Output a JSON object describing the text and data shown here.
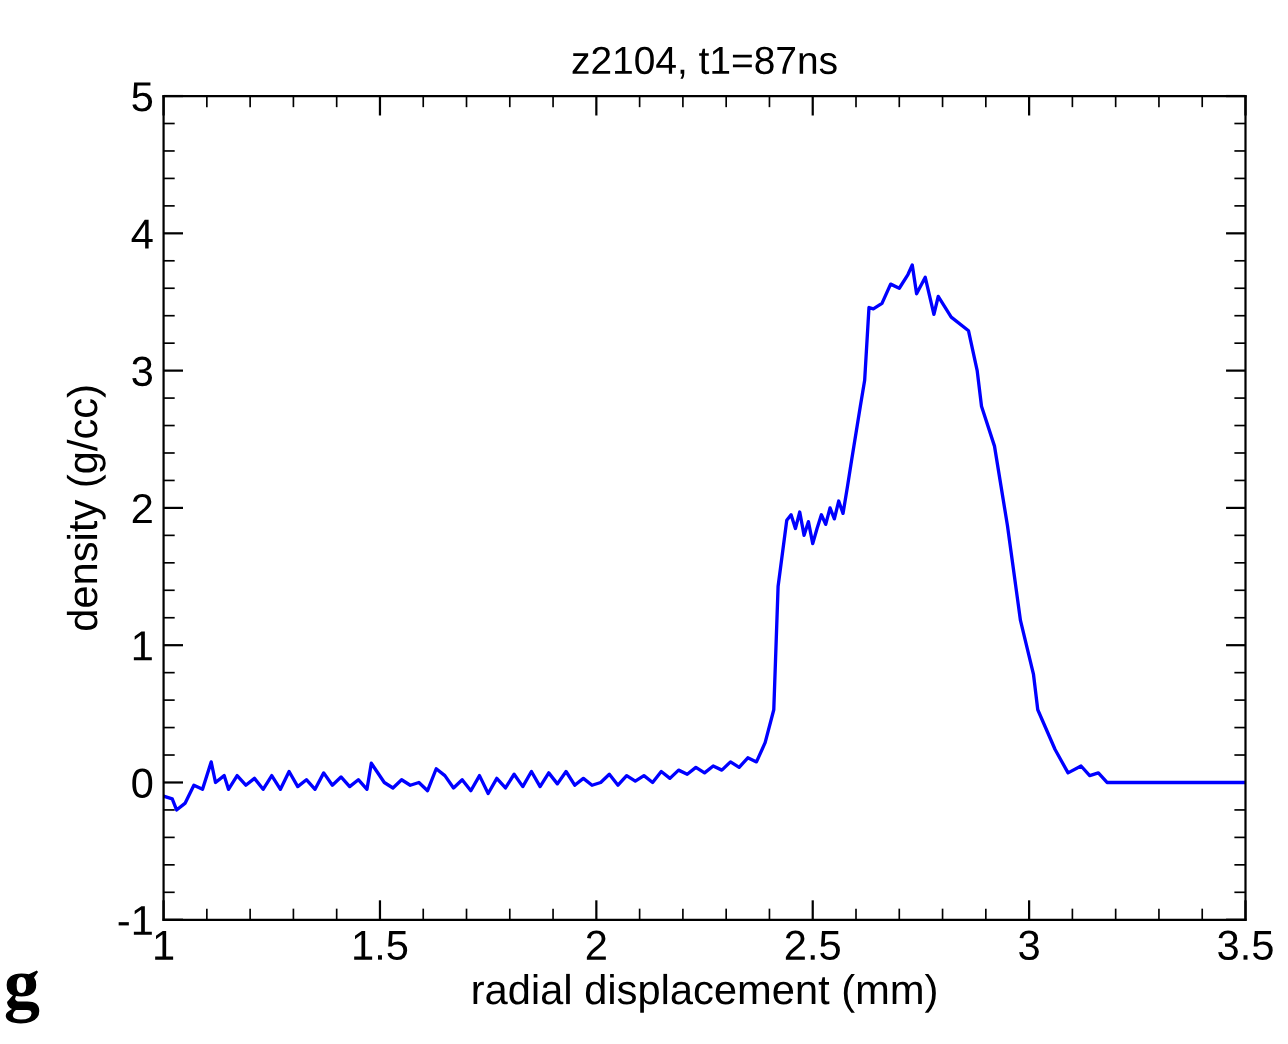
{
  "chart_data": {
    "type": "line",
    "title": "z2104, t1=87ns",
    "xlabel": "radial displacement (mm)",
    "ylabel": "density (g/cc)",
    "annotations": [
      "g"
    ],
    "xlim": [
      1,
      3.5
    ],
    "xticks": [
      1,
      1.5,
      2,
      2.5,
      3,
      3.5
    ],
    "ylim": [
      -1,
      5
    ],
    "yticks": [
      -1,
      0,
      1,
      2,
      3,
      4,
      5
    ],
    "grid": false,
    "marker": "none",
    "line_style": "solid",
    "series": [
      {
        "color": "#0000ff",
        "x": [
          1.0,
          1.02,
          1.03,
          1.05,
          1.07,
          1.09,
          1.11,
          1.12,
          1.14,
          1.15,
          1.17,
          1.19,
          1.21,
          1.23,
          1.25,
          1.27,
          1.29,
          1.31,
          1.33,
          1.35,
          1.37,
          1.39,
          1.41,
          1.43,
          1.45,
          1.47,
          1.48,
          1.51,
          1.53,
          1.55,
          1.57,
          1.59,
          1.61,
          1.63,
          1.65,
          1.67,
          1.69,
          1.71,
          1.73,
          1.75,
          1.77,
          1.79,
          1.81,
          1.83,
          1.85,
          1.87,
          1.89,
          1.91,
          1.93,
          1.95,
          1.97,
          1.99,
          2.01,
          2.03,
          2.05,
          2.07,
          2.09,
          2.11,
          2.13,
          2.15,
          2.17,
          2.19,
          2.21,
          2.23,
          2.25,
          2.27,
          2.29,
          2.31,
          2.33,
          2.35,
          2.37,
          2.39,
          2.41,
          2.42,
          2.44,
          2.45,
          2.46,
          2.47,
          2.48,
          2.49,
          2.5,
          2.51,
          2.52,
          2.53,
          2.54,
          2.55,
          2.56,
          2.57,
          2.58,
          2.59,
          2.61,
          2.62,
          2.63,
          2.64,
          2.66,
          2.68,
          2.7,
          2.72,
          2.73,
          2.74,
          2.76,
          2.78,
          2.79,
          2.82,
          2.86,
          2.88,
          2.89,
          2.92,
          2.95,
          2.98,
          3.01,
          3.02,
          3.06,
          3.09,
          3.12,
          3.14,
          3.16,
          3.18,
          3.5
        ],
        "values": [
          -0.1,
          -0.12,
          -0.2,
          -0.15,
          -0.02,
          -0.05,
          0.15,
          0.0,
          0.05,
          -0.05,
          0.05,
          -0.02,
          0.03,
          -0.05,
          0.05,
          -0.05,
          0.08,
          -0.03,
          0.02,
          -0.05,
          0.07,
          -0.02,
          0.04,
          -0.03,
          0.02,
          -0.05,
          0.14,
          0.0,
          -0.04,
          0.02,
          -0.02,
          0.0,
          -0.06,
          0.1,
          0.05,
          -0.04,
          0.02,
          -0.06,
          0.05,
          -0.08,
          0.03,
          -0.04,
          0.06,
          -0.03,
          0.08,
          -0.03,
          0.07,
          -0.01,
          0.08,
          -0.02,
          0.03,
          -0.02,
          0.0,
          0.06,
          -0.02,
          0.05,
          0.01,
          0.05,
          0.0,
          0.08,
          0.03,
          0.09,
          0.06,
          0.11,
          0.07,
          0.12,
          0.09,
          0.15,
          0.11,
          0.18,
          0.15,
          0.29,
          0.53,
          1.43,
          1.91,
          1.95,
          1.85,
          1.97,
          1.8,
          1.9,
          1.74,
          1.85,
          1.95,
          1.88,
          2.0,
          1.92,
          2.05,
          1.96,
          2.15,
          2.35,
          2.74,
          2.93,
          3.46,
          3.45,
          3.49,
          3.63,
          3.6,
          3.7,
          3.77,
          3.56,
          3.68,
          3.41,
          3.54,
          3.39,
          3.29,
          3.0,
          2.74,
          2.45,
          1.87,
          1.18,
          0.79,
          0.53,
          0.24,
          0.07,
          0.12,
          0.05,
          0.07,
          0.0,
          0.0
        ]
      }
    ]
  }
}
